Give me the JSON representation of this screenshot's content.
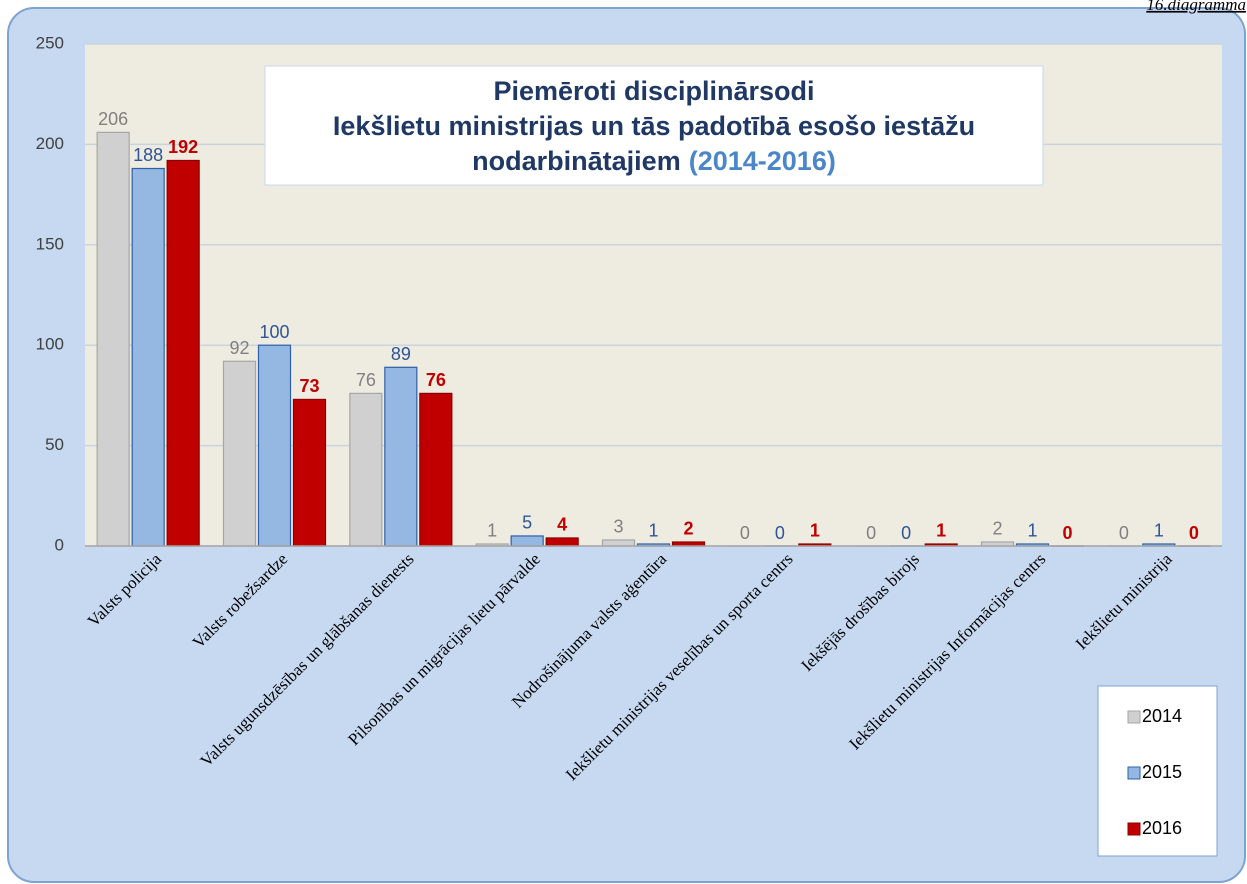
{
  "chart_data": {
    "type": "bar",
    "annotation": "16.diagramma",
    "title": [
      "Piemēroti disciplinārsodi",
      "Iekšlietu ministrijas un tās padotībā esošo iestāžu",
      "nodarbinātajiem"
    ],
    "subtitle": "(2014-2016)",
    "categories": [
      "Valsts policija",
      "Valsts robežsardze",
      "Valsts ugunsdzēsības un glābšanas dienests",
      "Pilsonības un migrācijas lietu pārvalde",
      "Nodrošinājuma valsts aģentūra",
      "Iekšlietu ministrijas veselības un sporta centrs",
      "Iekšējās drošības birojs",
      "Iekšlietu ministrijas Informācijas centrs",
      "Iekšlietu ministrija"
    ],
    "series": [
      {
        "name": "2014",
        "color": "#d0d0d0",
        "values": [
          206,
          92,
          76,
          1,
          3,
          0,
          0,
          2,
          0
        ]
      },
      {
        "name": "2015",
        "color": "#95b8e3",
        "values": [
          188,
          100,
          89,
          5,
          1,
          0,
          0,
          1,
          1
        ]
      },
      {
        "name": "2016",
        "color": "#c00000",
        "values": [
          192,
          73,
          76,
          4,
          2,
          1,
          1,
          0,
          0
        ]
      }
    ],
    "ylim": [
      0,
      250
    ],
    "yticks": [
      0,
      50,
      100,
      150,
      200,
      250
    ],
    "grid": true,
    "legend": "lower right"
  }
}
